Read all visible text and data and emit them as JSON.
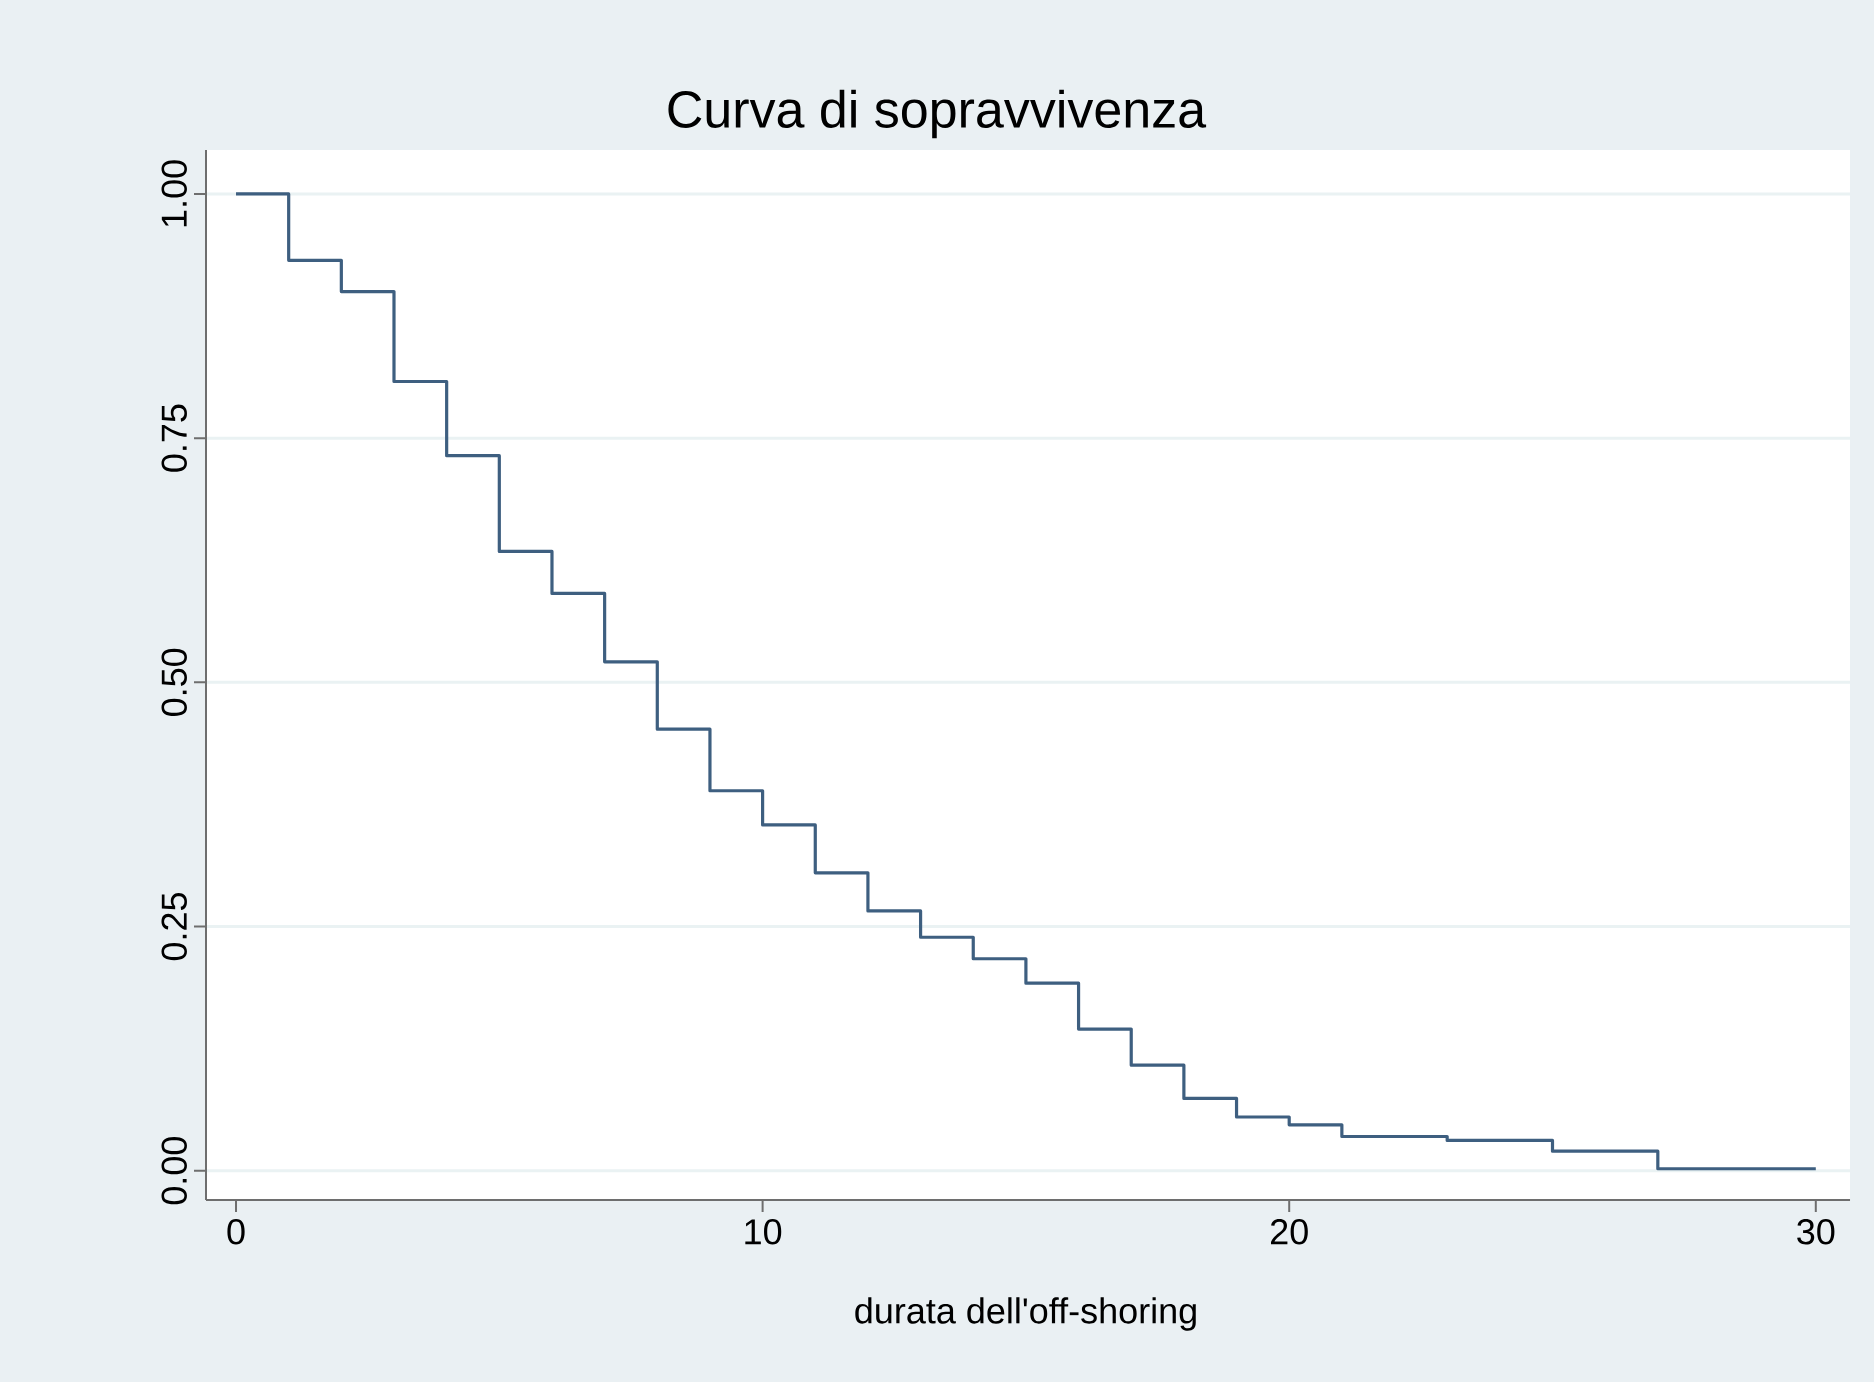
{
  "chart_data": {
    "type": "step",
    "title": "Curva di sopravvivenza",
    "xlabel": "durata dell'off-shoring",
    "x": [
      0,
      1,
      2,
      3,
      4,
      5,
      6,
      7,
      8,
      9,
      10,
      11,
      12,
      13,
      14,
      15,
      16,
      17,
      18,
      19,
      20,
      21,
      23,
      25,
      27,
      30
    ],
    "series": [
      {
        "color": "#3e5f80",
        "values": [
          1.0,
          0.932,
          0.9,
          0.808,
          0.732,
          0.634,
          0.591,
          0.521,
          0.452,
          0.389,
          0.354,
          0.305,
          0.266,
          0.239,
          0.217,
          0.192,
          0.145,
          0.108,
          0.074,
          0.055,
          0.047,
          0.035,
          0.031,
          0.02,
          0.002,
          0.002
        ]
      }
    ],
    "xlim": [
      -0.57,
      30.65
    ],
    "ylim": [
      -0.03,
      1.045
    ],
    "xticks": [
      0,
      10,
      20,
      30
    ],
    "yticks": [
      {
        "value": 0,
        "label": "0.00"
      },
      {
        "value": 0.25,
        "label": "0.25"
      },
      {
        "value": 0.5,
        "label": "0.50"
      },
      {
        "value": 0.75,
        "label": "0.75"
      },
      {
        "value": 1,
        "label": "1.00"
      }
    ],
    "grid": "y",
    "legend": false,
    "marker": "none",
    "line_style": "solid"
  }
}
